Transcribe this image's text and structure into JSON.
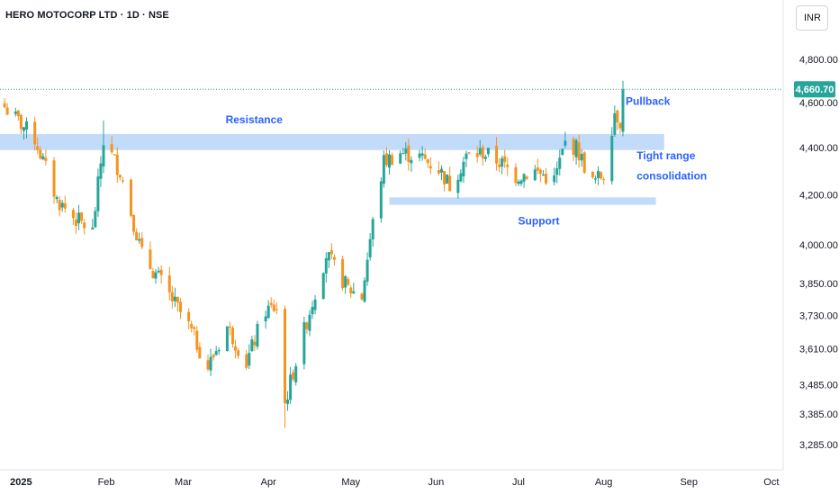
{
  "header": {
    "symbol_title": "HERO MOTOCORP LTD · 1D · NSE",
    "currency_label": "INR"
  },
  "colors": {
    "up": "#26a69a",
    "down": "#f7931e",
    "zone": "#bbd7fb",
    "annotation": "#2962ff",
    "last_price_badge": "#26a69a"
  },
  "chart_data": {
    "type": "candlestick",
    "title": "HERO MOTOCORP LTD · 1D · NSE",
    "y_scale": "log",
    "y_ticks": [
      {
        "value": 4800,
        "label": "4,800.00"
      },
      {
        "value": 4600,
        "label": "4,600.00"
      },
      {
        "value": 4400,
        "label": "4,400.00"
      },
      {
        "value": 4200,
        "label": "4,200.00"
      },
      {
        "value": 4000,
        "label": "4,000.00"
      },
      {
        "value": 3850,
        "label": "3,850.00"
      },
      {
        "value": 3730,
        "label": "3,730.00"
      },
      {
        "value": 3610,
        "label": "3,610.00"
      },
      {
        "value": 3485,
        "label": "3,485.00"
      },
      {
        "value": 3385,
        "label": "3,385.00"
      },
      {
        "value": 3285,
        "label": "3,285.00"
      }
    ],
    "x_ticks": [
      {
        "label": "2025",
        "date": "2025-01-01"
      },
      {
        "label": "Feb",
        "date": "2025-02-01"
      },
      {
        "label": "Mar",
        "date": "2025-03-01"
      },
      {
        "label": "Apr",
        "date": "2025-04-01"
      },
      {
        "label": "May",
        "date": "2025-05-01"
      },
      {
        "label": "Jun",
        "date": "2025-06-01"
      },
      {
        "label": "Jul",
        "date": "2025-07-01"
      },
      {
        "label": "Aug",
        "date": "2025-08-01"
      },
      {
        "label": "Sep",
        "date": "2025-09-01"
      },
      {
        "label": "Oct",
        "date": "2025-10-01"
      }
    ],
    "last_price": {
      "value": 4660.7,
      "label": "4,660.70"
    },
    "zones": [
      {
        "name": "resistance",
        "label": "Resistance",
        "from_date": "2024-12-20",
        "to_date": "2025-08-23",
        "low": 4390,
        "high": 4460
      },
      {
        "name": "support",
        "label": "Support",
        "from_date": "2025-05-15",
        "to_date": "2025-08-20",
        "low": 4160,
        "high": 4190
      }
    ],
    "annotations": [
      {
        "name": "pullback",
        "text": "Pullback",
        "date": "2025-08-09",
        "value": 4590
      },
      {
        "name": "tight-range",
        "text": "Tight range",
        "date": "2025-08-13",
        "value": 4350
      },
      {
        "name": "consolidation",
        "text": "consolidation",
        "date": "2025-08-13",
        "value": 4265
      }
    ],
    "waypoints": [
      [
        "2024-12-26",
        4580
      ],
      [
        "2025-01-06",
        4440
      ],
      [
        "2025-01-14",
        4180
      ],
      [
        "2025-01-20",
        4110
      ],
      [
        "2025-01-27",
        4050
      ],
      [
        "2025-01-31",
        4430
      ],
      [
        "2025-02-06",
        4300
      ],
      [
        "2025-02-14",
        3960
      ],
      [
        "2025-02-20",
        3870
      ],
      [
        "2025-03-03",
        3690
      ],
      [
        "2025-03-10",
        3545
      ],
      [
        "2025-03-17",
        3690
      ],
      [
        "2025-03-24",
        3560
      ],
      [
        "2025-03-31",
        3750
      ],
      [
        "2025-04-04",
        3760
      ],
      [
        "2025-04-07",
        3420
      ],
      [
        "2025-04-15",
        3710
      ],
      [
        "2025-04-22",
        3960
      ],
      [
        "2025-04-30",
        3830
      ],
      [
        "2025-05-05",
        3800
      ],
      [
        "2025-05-08",
        4020
      ],
      [
        "2025-05-13",
        4340
      ],
      [
        "2025-05-19",
        4380
      ],
      [
        "2025-05-26",
        4360
      ],
      [
        "2025-06-02",
        4310
      ],
      [
        "2025-06-06",
        4240
      ],
      [
        "2025-06-12",
        4360
      ],
      [
        "2025-06-18",
        4380
      ],
      [
        "2025-06-24",
        4340
      ],
      [
        "2025-06-30",
        4280
      ],
      [
        "2025-07-07",
        4300
      ],
      [
        "2025-07-14",
        4260
      ],
      [
        "2025-07-18",
        4420
      ],
      [
        "2025-07-22",
        4400
      ],
      [
        "2025-07-28",
        4250
      ],
      [
        "2025-08-01",
        4290
      ],
      [
        "2025-08-05",
        4560
      ],
      [
        "2025-08-07",
        4520
      ],
      [
        "2025-08-08",
        4660.7
      ]
    ]
  }
}
